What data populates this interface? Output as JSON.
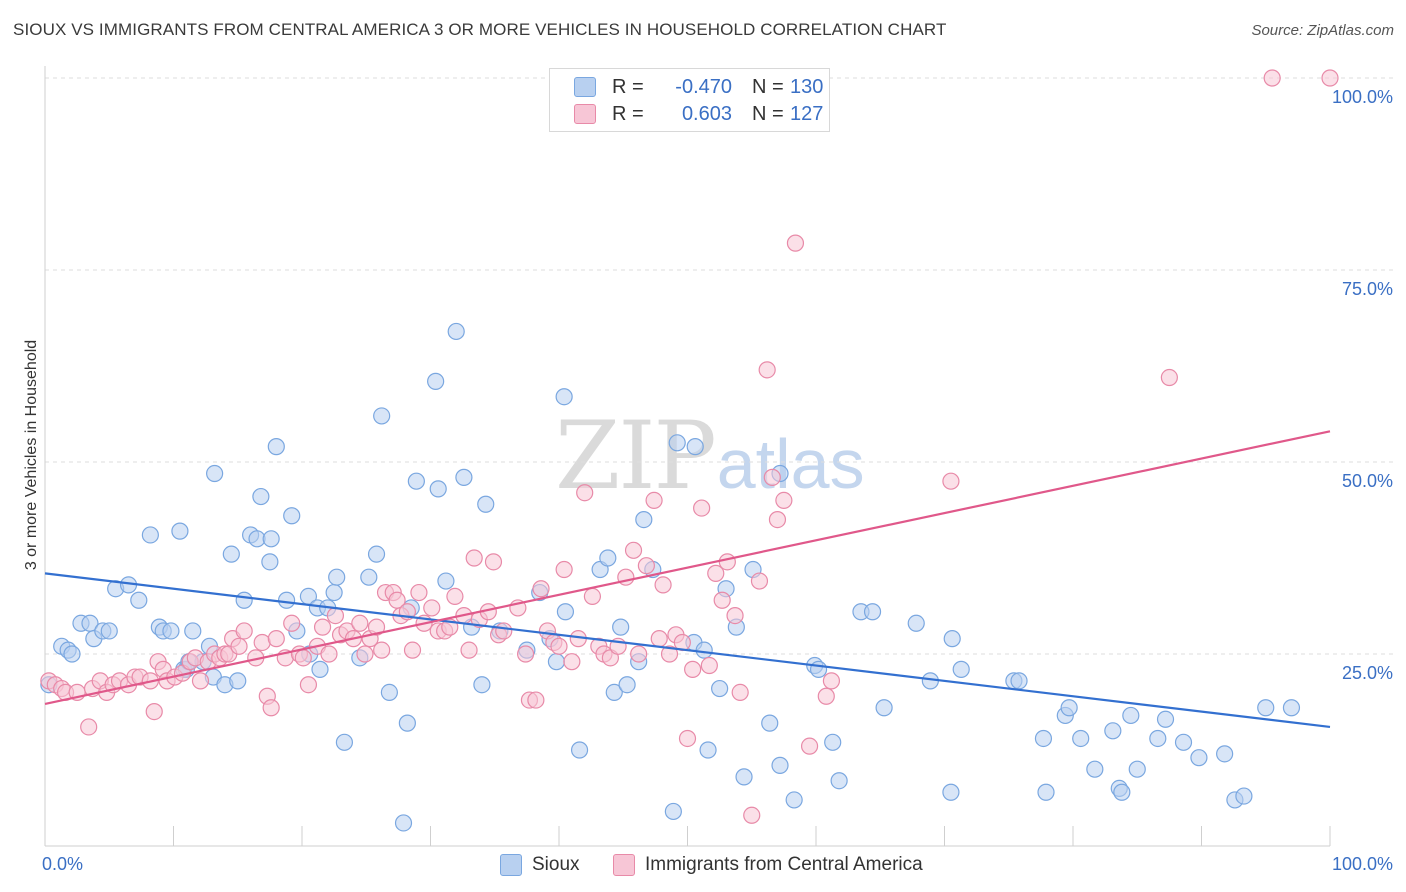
{
  "title": "SIOUX VS IMMIGRANTS FROM CENTRAL AMERICA 3 OR MORE VEHICLES IN HOUSEHOLD CORRELATION CHART",
  "source": "Source: ZipAtlas.com",
  "watermark": {
    "zip": "ZIP",
    "atlas": "atlas"
  },
  "legend": [
    {
      "r_label": "R =",
      "r_value": "-0.470",
      "n_label": "N =",
      "n_value": "130",
      "color": "#7aa7e0",
      "fill": "#b8d0f0"
    },
    {
      "r_label": "R =",
      "r_value": "0.603",
      "n_label": "N =",
      "n_value": "127",
      "color": "#e88aa8",
      "fill": "#f7c6d6"
    }
  ],
  "bottom_legend": [
    {
      "label": "Sioux",
      "color": "#7aa7e0",
      "fill": "#b8d0f0"
    },
    {
      "label": "Immigrants from Central America",
      "color": "#e88aa8",
      "fill": "#f7c6d6"
    }
  ],
  "chart_data": {
    "type": "scatter",
    "title": "SIOUX VS IMMIGRANTS FROM CENTRAL AMERICA 3 OR MORE VEHICLES IN HOUSEHOLD CORRELATION CHART",
    "xlabel": "",
    "ylabel": "3 or more Vehicles in Household",
    "xlim": [
      0,
      100
    ],
    "ylim": [
      0,
      100
    ],
    "x_tick_labels": [
      {
        "value": 0,
        "label": "0.0%"
      },
      {
        "value": 100,
        "label": "100.0%"
      }
    ],
    "y_tick_labels": [
      {
        "value": 25,
        "label": "25.0%"
      },
      {
        "value": 50,
        "label": "50.0%"
      },
      {
        "value": 75,
        "label": "75.0%"
      },
      {
        "value": 100,
        "label": "100.0%"
      }
    ],
    "grid": true,
    "legend_position": "top-center",
    "series": [
      {
        "name": "Sioux",
        "color": "#7aa7e0",
        "fill": "#b8d0f0",
        "trend": {
          "x": [
            0,
            100
          ],
          "y": [
            35.5,
            15.5
          ],
          "color": "#3370d0"
        },
        "points": [
          [
            0.3,
            21
          ],
          [
            1.3,
            26
          ],
          [
            1.8,
            25.5
          ],
          [
            2.1,
            25
          ],
          [
            2.8,
            29
          ],
          [
            3.5,
            29
          ],
          [
            3.8,
            27
          ],
          [
            4.5,
            28
          ],
          [
            5,
            28
          ],
          [
            5.5,
            33.5
          ],
          [
            6.5,
            34
          ],
          [
            7.3,
            32
          ],
          [
            8.2,
            40.5
          ],
          [
            8.9,
            28.5
          ],
          [
            9.2,
            28
          ],
          [
            9.8,
            28
          ],
          [
            10.5,
            41
          ],
          [
            10.8,
            23
          ],
          [
            11,
            23
          ],
          [
            11.2,
            24
          ],
          [
            11.5,
            28
          ],
          [
            12.3,
            24
          ],
          [
            12.8,
            26
          ],
          [
            13.1,
            22
          ],
          [
            13.2,
            48.5
          ],
          [
            14,
            21
          ],
          [
            14.5,
            38
          ],
          [
            15,
            21.5
          ],
          [
            15.5,
            32
          ],
          [
            16,
            40.5
          ],
          [
            16.5,
            40
          ],
          [
            16.8,
            45.5
          ],
          [
            17.5,
            37
          ],
          [
            17.6,
            40
          ],
          [
            18,
            52
          ],
          [
            18.8,
            32
          ],
          [
            19.2,
            43
          ],
          [
            19.6,
            28
          ],
          [
            20.5,
            32.5
          ],
          [
            20.6,
            25
          ],
          [
            21.2,
            31
          ],
          [
            21.4,
            23
          ],
          [
            22,
            31
          ],
          [
            22.5,
            33
          ],
          [
            22.7,
            35
          ],
          [
            23.3,
            13.5
          ],
          [
            24.5,
            24.5
          ],
          [
            25.2,
            35
          ],
          [
            25.8,
            38
          ],
          [
            26.2,
            56
          ],
          [
            26.8,
            20
          ],
          [
            27.9,
            3
          ],
          [
            28.2,
            16
          ],
          [
            28.5,
            31
          ],
          [
            28.9,
            47.5
          ],
          [
            30.4,
            60.5
          ],
          [
            30.6,
            46.5
          ],
          [
            31.2,
            34.5
          ],
          [
            32,
            67
          ],
          [
            32.6,
            48
          ],
          [
            33.2,
            28.5
          ],
          [
            34,
            21
          ],
          [
            34.3,
            44.5
          ],
          [
            35.4,
            28
          ],
          [
            37.5,
            25.5
          ],
          [
            38.5,
            33
          ],
          [
            39.3,
            27
          ],
          [
            39.8,
            24
          ],
          [
            40.4,
            58.5
          ],
          [
            40.5,
            30.5
          ],
          [
            41.6,
            12.5
          ],
          [
            43.2,
            36
          ],
          [
            43.8,
            37.5
          ],
          [
            44.3,
            20
          ],
          [
            44.8,
            28.5
          ],
          [
            45.3,
            21
          ],
          [
            46.2,
            24
          ],
          [
            46.6,
            42.5
          ],
          [
            47.3,
            36
          ],
          [
            48.9,
            4.5
          ],
          [
            49.2,
            52.5
          ],
          [
            50.5,
            26.5
          ],
          [
            50.6,
            52
          ],
          [
            51.3,
            25.5
          ],
          [
            51.6,
            12.5
          ],
          [
            52.5,
            20.5
          ],
          [
            53,
            33.5
          ],
          [
            53.8,
            28.5
          ],
          [
            54.4,
            9
          ],
          [
            55.1,
            36
          ],
          [
            56.4,
            16
          ],
          [
            57.2,
            10.5
          ],
          [
            57.2,
            48.5
          ],
          [
            58.3,
            6
          ],
          [
            59.9,
            23.5
          ],
          [
            60.2,
            23
          ],
          [
            61.3,
            13.5
          ],
          [
            61.8,
            8.5
          ],
          [
            63.5,
            30.5
          ],
          [
            64.4,
            30.5
          ],
          [
            65.3,
            18
          ],
          [
            67.8,
            29
          ],
          [
            68.9,
            21.5
          ],
          [
            70.5,
            7
          ],
          [
            70.6,
            27
          ],
          [
            71.3,
            23
          ],
          [
            75.4,
            21.5
          ],
          [
            75.8,
            21.5
          ],
          [
            77.7,
            14
          ],
          [
            77.9,
            7
          ],
          [
            79.4,
            17
          ],
          [
            79.7,
            18
          ],
          [
            80.6,
            14
          ],
          [
            81.7,
            10
          ],
          [
            83.1,
            15
          ],
          [
            83.6,
            7.5
          ],
          [
            83.8,
            7
          ],
          [
            84.5,
            17
          ],
          [
            85,
            10
          ],
          [
            86.6,
            14
          ],
          [
            87.2,
            16.5
          ],
          [
            88.6,
            13.5
          ],
          [
            89.8,
            11.5
          ],
          [
            91.8,
            12
          ],
          [
            92.6,
            6
          ],
          [
            93.3,
            6.5
          ],
          [
            95,
            18
          ],
          [
            97,
            18
          ]
        ]
      },
      {
        "name": "Immigrants from Central America",
        "color": "#e88aa8",
        "fill": "#f7c6d6",
        "trend": {
          "x": [
            0,
            100
          ],
          "y": [
            18.5,
            54
          ],
          "color": "#e0588a"
        },
        "points": [
          [
            0.3,
            21.5
          ],
          [
            0.8,
            21
          ],
          [
            1.3,
            20.5
          ],
          [
            1.6,
            20
          ],
          [
            2.5,
            20
          ],
          [
            3.4,
            15.5
          ],
          [
            3.7,
            20.5
          ],
          [
            4.3,
            21.5
          ],
          [
            4.8,
            20
          ],
          [
            5.3,
            21
          ],
          [
            5.8,
            21.5
          ],
          [
            6.5,
            21
          ],
          [
            7,
            22
          ],
          [
            7.4,
            22
          ],
          [
            8.2,
            21.5
          ],
          [
            8.5,
            17.5
          ],
          [
            8.8,
            24
          ],
          [
            9.2,
            23
          ],
          [
            9.5,
            21.5
          ],
          [
            10.1,
            22
          ],
          [
            10.7,
            22.5
          ],
          [
            11.3,
            24
          ],
          [
            11.7,
            24.5
          ],
          [
            12.1,
            21.5
          ],
          [
            12.7,
            24
          ],
          [
            13.2,
            25
          ],
          [
            13.6,
            24.5
          ],
          [
            14,
            25
          ],
          [
            14.3,
            25
          ],
          [
            14.6,
            27
          ],
          [
            15.1,
            26
          ],
          [
            15.5,
            28
          ],
          [
            16.4,
            24.5
          ],
          [
            16.9,
            26.5
          ],
          [
            17.3,
            19.5
          ],
          [
            17.6,
            18
          ],
          [
            18,
            27
          ],
          [
            18.7,
            24.5
          ],
          [
            19.2,
            29
          ],
          [
            19.8,
            25
          ],
          [
            20.1,
            24.5
          ],
          [
            20.5,
            21
          ],
          [
            21.2,
            26
          ],
          [
            21.6,
            28.5
          ],
          [
            22.1,
            25
          ],
          [
            22.6,
            30
          ],
          [
            23,
            27.5
          ],
          [
            23.5,
            28
          ],
          [
            24,
            27
          ],
          [
            24.5,
            29
          ],
          [
            24.9,
            25
          ],
          [
            25.3,
            27
          ],
          [
            25.8,
            28.5
          ],
          [
            26.2,
            25.5
          ],
          [
            26.5,
            33
          ],
          [
            27.1,
            33
          ],
          [
            27.4,
            32
          ],
          [
            27.7,
            30
          ],
          [
            28.2,
            30.5
          ],
          [
            28.6,
            25.5
          ],
          [
            29.1,
            33
          ],
          [
            29.5,
            29
          ],
          [
            30.1,
            31
          ],
          [
            30.6,
            28
          ],
          [
            31.1,
            28
          ],
          [
            31.5,
            28.5
          ],
          [
            31.9,
            32.5
          ],
          [
            32.6,
            30
          ],
          [
            33,
            25.5
          ],
          [
            33.4,
            37.5
          ],
          [
            33.8,
            29.5
          ],
          [
            34.5,
            30.5
          ],
          [
            34.9,
            37
          ],
          [
            35.3,
            27.5
          ],
          [
            35.7,
            28
          ],
          [
            36.8,
            31
          ],
          [
            37.4,
            25
          ],
          [
            37.7,
            19
          ],
          [
            38.2,
            19
          ],
          [
            38.6,
            33.5
          ],
          [
            39.1,
            28
          ],
          [
            39.6,
            26.5
          ],
          [
            40,
            26
          ],
          [
            40.4,
            36
          ],
          [
            41,
            24
          ],
          [
            41.5,
            27
          ],
          [
            42,
            46
          ],
          [
            42.6,
            32.5
          ],
          [
            43.1,
            26
          ],
          [
            43.5,
            25
          ],
          [
            44,
            24.5
          ],
          [
            44.6,
            26
          ],
          [
            45.2,
            35
          ],
          [
            45.8,
            38.5
          ],
          [
            46.2,
            25
          ],
          [
            46.8,
            36.5
          ],
          [
            47.4,
            45
          ],
          [
            47.8,
            27
          ],
          [
            48.1,
            34
          ],
          [
            48.6,
            25
          ],
          [
            49.1,
            27.5
          ],
          [
            49.6,
            26.5
          ],
          [
            50,
            14
          ],
          [
            50.4,
            23
          ],
          [
            51.1,
            44
          ],
          [
            51.7,
            23.5
          ],
          [
            52.2,
            35.5
          ],
          [
            52.7,
            32
          ],
          [
            53.1,
            37
          ],
          [
            53.7,
            30
          ],
          [
            54.1,
            20
          ],
          [
            55,
            4
          ],
          [
            55.6,
            34.5
          ],
          [
            56.2,
            62
          ],
          [
            56.6,
            48
          ],
          [
            57,
            42.5
          ],
          [
            57.5,
            45
          ],
          [
            58.4,
            78.5
          ],
          [
            59.5,
            13
          ],
          [
            60.8,
            19.5
          ],
          [
            61.2,
            21.5
          ],
          [
            70.5,
            47.5
          ],
          [
            87.5,
            61
          ],
          [
            95.5,
            100
          ],
          [
            100,
            100
          ]
        ]
      }
    ]
  }
}
